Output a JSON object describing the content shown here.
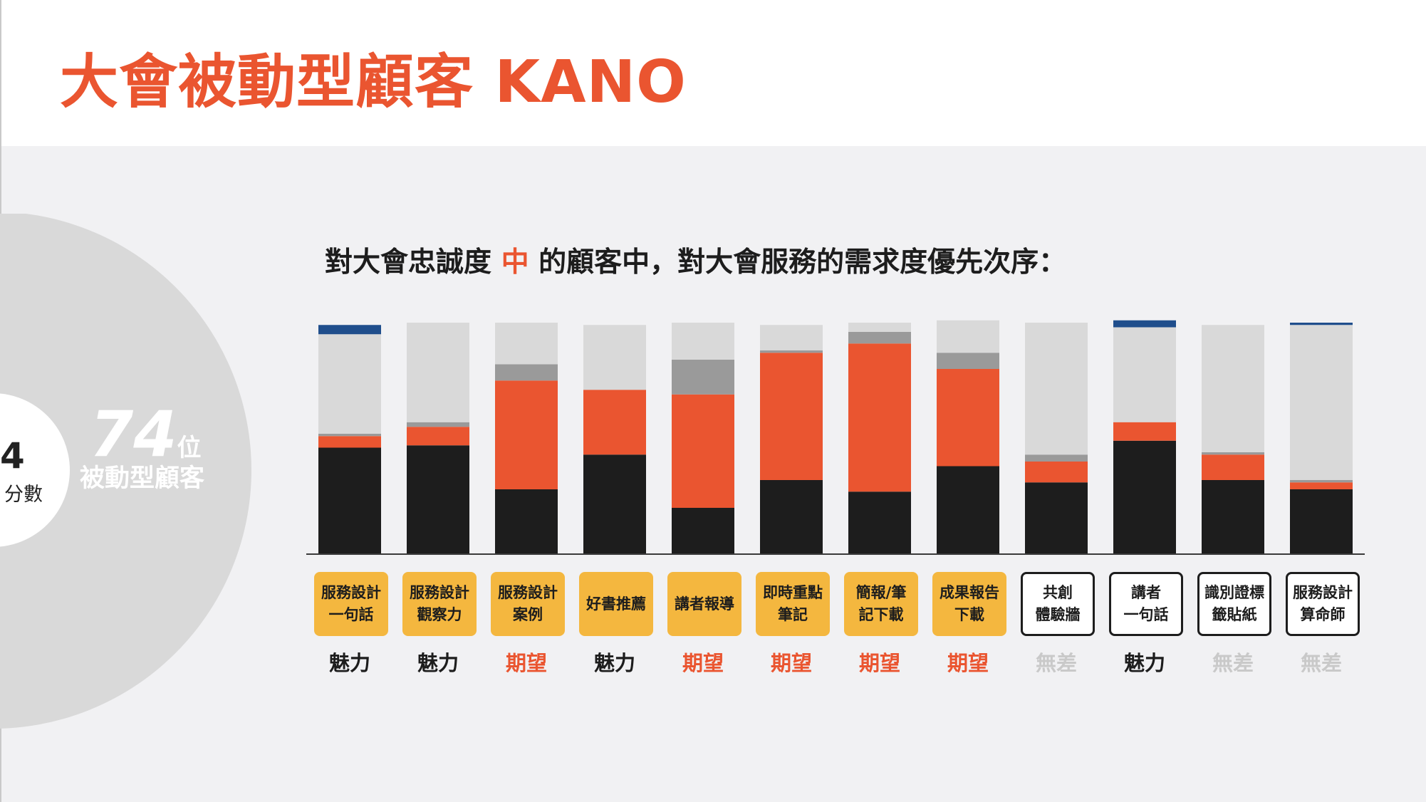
{
  "title": "大會被動型顧客 KANO",
  "left_panel": {
    "donut_count": "4",
    "donut_label": "分數",
    "segment_count": "74",
    "segment_unit": "位",
    "segment_label": "被動型顧客",
    "pie_fractions": {
      "grey": 0.81,
      "orange": 0.19
    },
    "colors": {
      "grey": "#d9d9d9",
      "orange": "#ea5530"
    }
  },
  "subtitle": {
    "before": "對大會忠誠度 ",
    "accent": "中",
    "after": " 的顧客中，對大會服務的需求度優先次序："
  },
  "legend_colors": {
    "魅力": "#1d1d1d",
    "期望": "#ea5530",
    "必要": "#9a9a9a",
    "無差": "#d9d9d9",
    "反向": "#1f4e8c"
  },
  "class_colors": {
    "魅力": "#1d1d1d",
    "期望": "#ea5530",
    "無差": "#c9c9c9"
  },
  "chart_data": {
    "type": "bar",
    "stacked": true,
    "ylim": [
      0,
      100
    ],
    "categories": [
      "服務設計一句話",
      "服務設計觀察力",
      "服務設計案例",
      "好書推薦",
      "講者報導",
      "即時重點筆記",
      "簡報/筆記下載",
      "成果報告下載",
      "共創體驗牆",
      "講者一句話",
      "識別證標籤貼紙",
      "服務設計算命師"
    ],
    "category_labels": [
      "服務設計\n一句話",
      "服務設計\n觀察力",
      "服務設計\n案例",
      "好書推薦",
      "講者報導",
      "即時重點\n筆記",
      "簡報/筆\n記下載",
      "成果報告\n下載",
      "共創\n體驗牆",
      "講者\n一句話",
      "識別證標\n籤貼紙",
      "服務設計\n算命師"
    ],
    "category_style": [
      "filled",
      "filled",
      "filled",
      "filled",
      "filled",
      "filled",
      "filled",
      "filled",
      "outlined",
      "outlined",
      "outlined",
      "outlined"
    ],
    "classification": [
      "魅力",
      "魅力",
      "期望",
      "魅力",
      "期望",
      "期望",
      "期望",
      "期望",
      "無差",
      "魅力",
      "無差",
      "無差"
    ],
    "series": [
      {
        "key": "魅力",
        "values": [
          46,
          47,
          28,
          43,
          20,
          32,
          27,
          38,
          31,
          49,
          32,
          28
        ]
      },
      {
        "key": "期望",
        "values": [
          5,
          8,
          47,
          28,
          49,
          55,
          64,
          42,
          9,
          8,
          11,
          3
        ]
      },
      {
        "key": "必要",
        "values": [
          1,
          2,
          7,
          0,
          15,
          1,
          5,
          7,
          3,
          0,
          1,
          1
        ]
      },
      {
        "key": "無差",
        "values": [
          43,
          43,
          18,
          28,
          16,
          11,
          4,
          14,
          57,
          41,
          55,
          67
        ]
      },
      {
        "key": "反向",
        "values": [
          4,
          0,
          0,
          0,
          0,
          0,
          0,
          0,
          0,
          3,
          0,
          1
        ]
      }
    ]
  }
}
